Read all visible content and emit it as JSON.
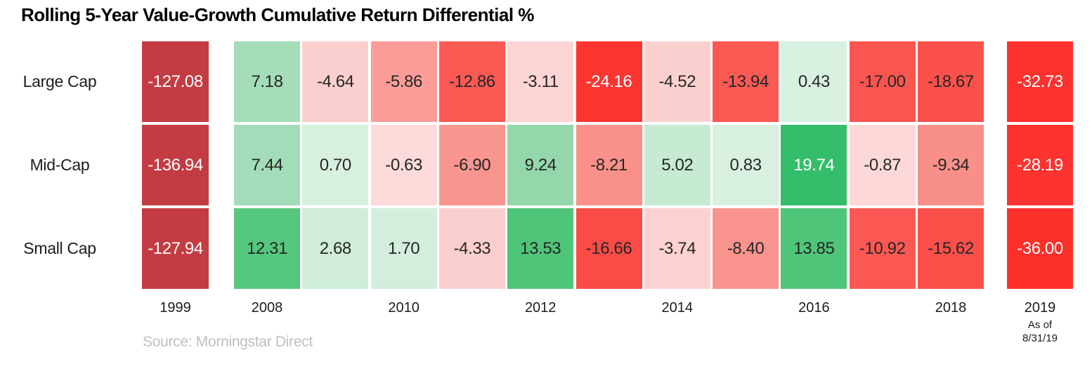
{
  "title": "Rolling 5-Year Value-Growth Cumulative Return Differential %",
  "source_text": "Source: Morningstar Direct",
  "as_of_line1": "As of",
  "as_of_line2": "8/31/19",
  "chart_data": {
    "type": "heatmap",
    "title": "Rolling 5-Year Value-Growth Cumulative Return Differential %",
    "unit": "%",
    "value_format_decimals": 2,
    "column_labels": [
      "1999",
      "2008",
      "",
      "2010",
      "",
      "2012",
      "",
      "2014",
      "",
      "2016",
      "",
      "2018",
      "2019"
    ],
    "rows": [
      {
        "name": "Large Cap",
        "values": [
          -127.08,
          7.18,
          -4.64,
          -5.86,
          -12.86,
          -3.11,
          -24.16,
          -4.52,
          -13.94,
          0.43,
          -17.0,
          -18.67,
          -32.73
        ],
        "colors": [
          "#C43C43",
          "#A5DDB9",
          "#FBCFCE",
          "#FA9D98",
          "#FB5A55",
          "#FCD5D4",
          "#FC3531",
          "#FBD1D0",
          "#FB5954",
          "#D9F1E1",
          "#FB5550",
          "#FB514C",
          "#FC322E"
        ]
      },
      {
        "name": "Mid-Cap",
        "values": [
          -136.94,
          7.44,
          0.7,
          -0.63,
          -6.9,
          9.24,
          -8.21,
          5.02,
          0.83,
          19.74,
          -0.87,
          -9.34,
          -28.19
        ],
        "colors": [
          "#C43C43",
          "#A3DCB8",
          "#D8F0E0",
          "#FCDBDA",
          "#F9958F",
          "#93D7AA",
          "#F9908A",
          "#C6EAD2",
          "#D8F0E0",
          "#34BD6A",
          "#FCD9D8",
          "#F98F89",
          "#FC332F"
        ]
      },
      {
        "name": "Small Cap",
        "values": [
          -127.94,
          12.31,
          2.68,
          1.7,
          -4.33,
          13.53,
          -16.66,
          -3.74,
          -8.4,
          13.85,
          -10.92,
          -15.62,
          -36.0
        ],
        "colors": [
          "#C43C43",
          "#56C77E",
          "#CFEDD9",
          "#D3EEDC",
          "#FBCFCD",
          "#4FC579",
          "#FB4B46",
          "#FBD2D1",
          "#F9938D",
          "#4EC578",
          "#FB5853",
          "#FB4F4A",
          "#FC2F2B"
        ]
      }
    ],
    "text_colors": {
      "dark": "#262626",
      "light": "#FFFFFF",
      "white_text_abs_threshold": 19
    },
    "legend": "none",
    "grid": "off"
  }
}
